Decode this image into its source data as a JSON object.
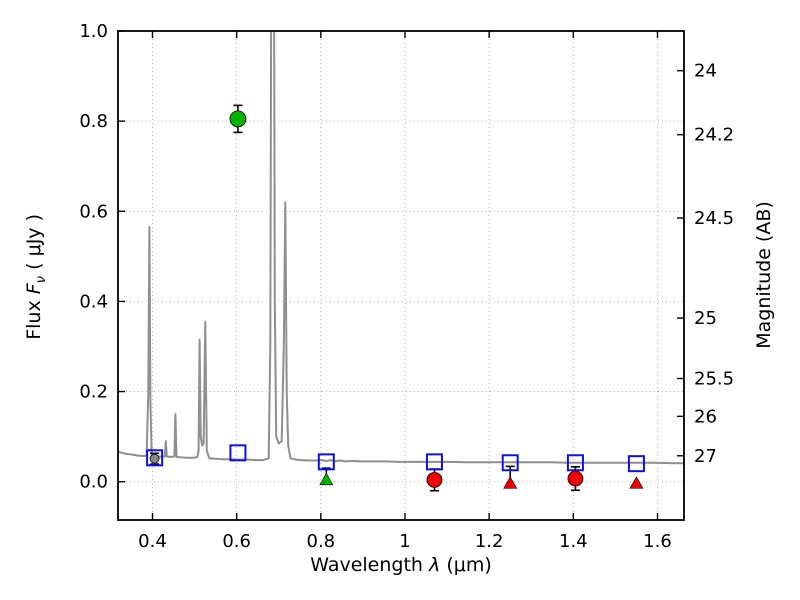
{
  "figure": {
    "background": "#ffffff"
  },
  "chart_data": {
    "type": "line+scatter",
    "title": "",
    "xlabel": "Wavelength λ (μm)",
    "ylabel": "Flux Fν ( μJy )",
    "ylabel_right": "Magnitude (AB)",
    "label_parts": {
      "x_word": "Wavelength",
      "x_sym": "λ",
      "x_unit": "(μm)",
      "y_word": "Flux",
      "y_sym": "F",
      "y_sub": "ν",
      "y_unit": "( μJy )"
    },
    "xlim": [
      0.318,
      1.663
    ],
    "ylim": [
      -0.085,
      1.0
    ],
    "grid": true,
    "x_ticks": [
      {
        "v": 0.4,
        "label": "0.4"
      },
      {
        "v": 0.6,
        "label": "0.6"
      },
      {
        "v": 0.8,
        "label": "0.8"
      },
      {
        "v": 1.0,
        "label": "1"
      },
      {
        "v": 1.2,
        "label": "1.2"
      },
      {
        "v": 1.4,
        "label": "1.4"
      },
      {
        "v": 1.6,
        "label": "1.6"
      }
    ],
    "y_ticks": [
      {
        "v": 0.0,
        "label": "0.0"
      },
      {
        "v": 0.2,
        "label": "0.2"
      },
      {
        "v": 0.4,
        "label": "0.4"
      },
      {
        "v": 0.6,
        "label": "0.6"
      },
      {
        "v": 0.8,
        "label": "0.8"
      },
      {
        "v": 1.0,
        "label": "1.0"
      }
    ],
    "y_ticks_right": [
      {
        "flux": 0.912,
        "label": "24"
      },
      {
        "flux": 0.77,
        "label": "24.2"
      },
      {
        "flux": 0.585,
        "label": "24.5"
      },
      {
        "flux": 0.363,
        "label": "25"
      },
      {
        "flux": 0.229,
        "label": "25.5"
      },
      {
        "flux": 0.145,
        "label": "26"
      },
      {
        "flux": 0.0575,
        "label": "27"
      }
    ],
    "colors": {
      "spectrum": "#8f8f8f",
      "model_squares": "#0f0fee",
      "detection_green": "#00b400",
      "detection_red": "#ee0000",
      "faint_gray_point": "#8a8a8a",
      "errorbar": "#000000",
      "grid": "#b3b3b3",
      "frame": "#000000"
    },
    "series": [
      {
        "name": "model-spectrum",
        "type": "line",
        "color": "#8f8f8f",
        "width": 2,
        "points": [
          [
            0.319,
            0.066
          ],
          [
            0.335,
            0.062
          ],
          [
            0.352,
            0.06
          ],
          [
            0.366,
            0.058
          ],
          [
            0.378,
            0.057
          ],
          [
            0.386,
            0.058
          ],
          [
            0.39,
            0.2
          ],
          [
            0.3925,
            0.565
          ],
          [
            0.395,
            0.18
          ],
          [
            0.398,
            0.058
          ],
          [
            0.408,
            0.057
          ],
          [
            0.418,
            0.056
          ],
          [
            0.429,
            0.056
          ],
          [
            0.4315,
            0.09
          ],
          [
            0.434,
            0.056
          ],
          [
            0.445,
            0.055
          ],
          [
            0.452,
            0.056
          ],
          [
            0.4545,
            0.15
          ],
          [
            0.457,
            0.055
          ],
          [
            0.468,
            0.054
          ],
          [
            0.481,
            0.053
          ],
          [
            0.495,
            0.053
          ],
          [
            0.506,
            0.054
          ],
          [
            0.5095,
            0.068
          ],
          [
            0.512,
            0.315
          ],
          [
            0.5145,
            0.1
          ],
          [
            0.518,
            0.08
          ],
          [
            0.5215,
            0.085
          ],
          [
            0.5255,
            0.355
          ],
          [
            0.529,
            0.068
          ],
          [
            0.535,
            0.052
          ],
          [
            0.55,
            0.051
          ],
          [
            0.567,
            0.05
          ],
          [
            0.586,
            0.05
          ],
          [
            0.606,
            0.049
          ],
          [
            0.626,
            0.049
          ],
          [
            0.646,
            0.048
          ],
          [
            0.663,
            0.048
          ],
          [
            0.676,
            0.052
          ],
          [
            0.68,
            0.3
          ],
          [
            0.6835,
            1.6
          ],
          [
            0.6875,
            1.6
          ],
          [
            0.6905,
            0.4
          ],
          [
            0.694,
            0.1
          ],
          [
            0.7,
            0.085
          ],
          [
            0.707,
            0.09
          ],
          [
            0.712,
            0.3
          ],
          [
            0.7155,
            0.62
          ],
          [
            0.719,
            0.2
          ],
          [
            0.7225,
            0.08
          ],
          [
            0.728,
            0.052
          ],
          [
            0.741,
            0.049
          ],
          [
            0.756,
            0.048
          ],
          [
            0.773,
            0.047
          ],
          [
            0.79,
            0.047
          ],
          [
            0.803,
            0.048
          ],
          [
            0.813,
            0.046
          ],
          [
            0.823,
            0.048
          ],
          [
            0.833,
            0.045
          ],
          [
            0.846,
            0.047
          ],
          [
            0.859,
            0.045
          ],
          [
            0.876,
            0.046
          ],
          [
            0.896,
            0.045
          ],
          [
            0.921,
            0.045
          ],
          [
            0.951,
            0.045
          ],
          [
            0.986,
            0.044
          ],
          [
            1.021,
            0.044
          ],
          [
            1.061,
            0.044
          ],
          [
            1.101,
            0.044
          ],
          [
            1.146,
            0.043
          ],
          [
            1.191,
            0.043
          ],
          [
            1.241,
            0.043
          ],
          [
            1.291,
            0.043
          ],
          [
            1.341,
            0.043
          ],
          [
            1.391,
            0.042
          ],
          [
            1.441,
            0.042
          ],
          [
            1.491,
            0.042
          ],
          [
            1.541,
            0.042
          ],
          [
            1.591,
            0.042
          ],
          [
            1.641,
            0.041
          ],
          [
            1.663,
            0.041
          ]
        ]
      },
      {
        "name": "model-photometry",
        "type": "scatter",
        "marker": "square-open",
        "color": "#0f0fee",
        "points": [
          [
            0.405,
            0.053
          ],
          [
            0.603,
            0.064
          ],
          [
            0.813,
            0.044
          ],
          [
            1.07,
            0.044
          ],
          [
            1.25,
            0.042
          ],
          [
            1.405,
            0.042
          ],
          [
            1.55,
            0.04
          ]
        ]
      },
      {
        "name": "observed-photometry",
        "type": "scatter",
        "points": [
          {
            "x": 0.405,
            "y": 0.051,
            "err": 0.012,
            "marker": "circle",
            "color": "#8a8a8a",
            "size": 4.5
          },
          {
            "x": 0.603,
            "y": 0.805,
            "err": 0.03,
            "marker": "circle",
            "color": "#00b400",
            "size": 8
          },
          {
            "x": 0.813,
            "y": 0.004,
            "err_up": 0.026,
            "marker": "triangle",
            "color": "#00b400",
            "size": 6.5
          },
          {
            "x": 1.07,
            "y": 0.004,
            "err": 0.024,
            "marker": "circle",
            "color": "#ee0000",
            "size": 7.5
          },
          {
            "x": 1.25,
            "y": -0.004,
            "err_up": 0.038,
            "marker": "triangle",
            "color": "#ee0000",
            "size": 6.5
          },
          {
            "x": 1.405,
            "y": 0.007,
            "err": 0.026,
            "marker": "circle",
            "color": "#ee0000",
            "size": 7.5
          },
          {
            "x": 1.55,
            "y": -0.004,
            "marker": "triangle",
            "color": "#ee0000",
            "size": 6.5
          }
        ]
      }
    ]
  }
}
